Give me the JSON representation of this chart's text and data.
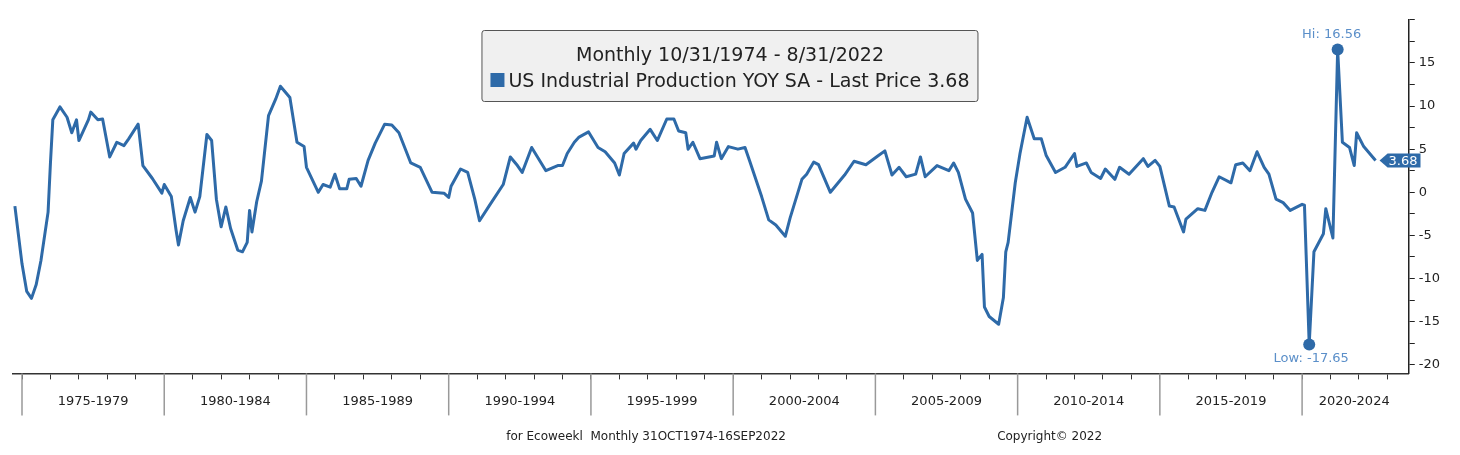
{
  "chart_data": {
    "type": "line",
    "title": "Monthly 10/31/1974 - 8/31/2022",
    "legend": "top",
    "line_style": "solid",
    "marker": "none",
    "x": [
      "1974-10",
      "1975-01",
      "1975-03",
      "1975-05",
      "1975-07",
      "1975-09",
      "1975-12",
      "1976-01",
      "1976-02",
      "1976-05",
      "1976-08",
      "1976-10",
      "1976-12",
      "1977-01",
      "1977-05",
      "1977-06",
      "1977-09",
      "1977-11",
      "1978-02",
      "1978-05",
      "1978-08",
      "1978-10",
      "1979-02",
      "1979-04",
      "1979-08",
      "1979-12",
      "1980-01",
      "1980-04",
      "1980-06",
      "1980-07",
      "1980-09",
      "1980-12",
      "1981-02",
      "1981-04",
      "1981-07",
      "1981-09",
      "1981-11",
      "1982-01",
      "1982-03",
      "1982-05",
      "1982-08",
      "1982-10",
      "1982-12",
      "1983-01",
      "1983-02",
      "1983-04",
      "1983-06",
      "1983-09",
      "1983-12",
      "1984-02",
      "1984-06",
      "1984-09",
      "1984-12",
      "1985-01",
      "1985-06",
      "1985-08",
      "1985-11",
      "1986-01",
      "1986-03",
      "1986-06",
      "1986-07",
      "1986-10",
      "1986-12",
      "1987-03",
      "1987-06",
      "1987-10",
      "1988-01",
      "1988-04",
      "1988-09",
      "1989-01",
      "1989-06",
      "1989-11",
      "1990-01",
      "1990-02",
      "1990-06",
      "1990-09",
      "1990-12",
      "1991-02",
      "1991-06",
      "1991-12",
      "1992-03",
      "1992-06",
      "1992-08",
      "1992-12",
      "1993-06",
      "1993-11",
      "1994-01",
      "1994-03",
      "1994-06",
      "1994-08",
      "1994-12",
      "1995-04",
      "1995-07",
      "1995-11",
      "1996-01",
      "1996-03",
      "1996-07",
      "1996-08",
      "1996-10",
      "1997-02",
      "1997-05",
      "1997-09",
      "1997-12",
      "1998-02",
      "1998-05",
      "1998-06",
      "1998-08",
      "1998-11",
      "1999-05",
      "1999-06",
      "1999-08",
      "1999-11",
      "2000-03",
      "2000-06",
      "2000-08",
      "2001-01",
      "2001-04",
      "2001-07",
      "2001-11",
      "2002-01",
      "2002-06",
      "2002-08",
      "2002-11",
      "2003-01",
      "2003-06",
      "2003-12",
      "2004-04",
      "2004-09",
      "2005-02",
      "2005-05",
      "2005-08",
      "2005-11",
      "2006-02",
      "2006-06",
      "2006-08",
      "2006-10",
      "2007-03",
      "2007-08",
      "2007-10",
      "2007-12",
      "2008-03",
      "2008-06",
      "2008-08",
      "2008-10",
      "2008-11",
      "2009-01",
      "2009-05",
      "2009-07",
      "2009-08",
      "2009-09",
      "2009-12",
      "2010-02",
      "2010-05",
      "2010-08",
      "2010-11",
      "2011-01",
      "2011-05",
      "2011-09",
      "2012-01",
      "2012-02",
      "2012-06",
      "2012-08",
      "2012-12",
      "2013-02",
      "2013-06",
      "2013-08",
      "2013-12",
      "2014-06",
      "2014-08",
      "2014-11",
      "2015-01",
      "2015-05",
      "2015-07",
      "2015-11",
      "2015-12",
      "2016-05",
      "2016-08",
      "2016-11",
      "2017-02",
      "2017-07",
      "2017-09",
      "2017-12",
      "2018-03",
      "2018-06",
      "2018-09",
      "2018-11",
      "2019-02",
      "2019-05",
      "2019-08",
      "2020-01",
      "2020-02",
      "2020-04",
      "2020-06",
      "2020-10",
      "2020-11",
      "2021-02",
      "2021-04",
      "2021-06",
      "2021-09",
      "2021-11",
      "2021-12",
      "2022-03",
      "2022-08"
    ],
    "series": [
      {
        "name": "US Industrial Production YOY SA - Last Price 3.68",
        "color": "#2e6aa8",
        "values": [
          -1.6,
          -8.3,
          -11.5,
          -12.3,
          -10.7,
          -7.9,
          -2.3,
          3.4,
          8.4,
          9.9,
          8.7,
          6.9,
          8.4,
          6.0,
          8.4,
          9.3,
          8.4,
          8.5,
          4.1,
          5.8,
          5.4,
          6.2,
          7.9,
          3.1,
          1.6,
          -0.1,
          0.9,
          -0.5,
          -4.4,
          -6.1,
          -3.3,
          -0.6,
          -2.3,
          -0.5,
          6.7,
          6.0,
          -0.8,
          -4.0,
          -1.7,
          -4.2,
          -6.7,
          -6.9,
          -5.8,
          -2.1,
          -4.6,
          -1.1,
          1.3,
          8.9,
          10.8,
          12.3,
          11.0,
          5.8,
          5.3,
          2.9,
          0.0,
          0.9,
          0.6,
          2.1,
          0.4,
          0.4,
          1.5,
          1.6,
          0.7,
          3.7,
          5.7,
          7.9,
          7.8,
          6.9,
          3.4,
          2.9,
          0.0,
          -0.1,
          -0.6,
          0.7,
          2.7,
          2.3,
          -0.8,
          -3.3,
          -1.6,
          0.9,
          4.1,
          3.1,
          2.3,
          5.2,
          2.5,
          3.1,
          3.1,
          4.5,
          5.8,
          6.4,
          7.0,
          5.2,
          4.7,
          3.4,
          2.0,
          4.5,
          5.7,
          5.0,
          6.0,
          7.3,
          6.0,
          8.5,
          8.5,
          7.1,
          6.9,
          5.0,
          5.8,
          3.9,
          4.2,
          5.8,
          3.9,
          5.3,
          5.0,
          5.2,
          3.6,
          -0.5,
          -3.2,
          -3.8,
          -5.1,
          -3.0,
          1.5,
          2.1,
          3.5,
          3.2,
          0.0,
          2.0,
          3.6,
          3.2,
          4.2,
          4.8,
          2.0,
          2.9,
          1.8,
          2.1,
          4.1,
          1.8,
          3.1,
          2.5,
          3.4,
          2.3,
          -0.8,
          -2.4,
          -7.9,
          -7.2,
          -13.3,
          -14.4,
          -15.3,
          -12.2,
          -6.9,
          -5.8,
          1.1,
          4.5,
          8.7,
          6.2,
          6.2,
          4.3,
          2.3,
          2.9,
          4.5,
          3.0,
          3.4,
          2.3,
          1.6,
          2.7,
          1.5,
          2.9,
          2.1,
          3.9,
          3.0,
          3.7,
          3.0,
          -1.6,
          -1.7,
          -4.6,
          -3.1,
          -1.9,
          -2.1,
          0.0,
          1.8,
          1.1,
          3.2,
          3.4,
          2.5,
          4.7,
          2.9,
          2.1,
          -0.8,
          -1.2,
          -2.1,
          -1.4,
          -1.5,
          -17.65,
          -6.9,
          -4.8,
          -1.9,
          -5.3,
          16.56,
          5.8,
          5.2,
          3.1,
          6.9,
          5.3,
          3.68
        ]
      }
    ],
    "xlim": [
      "1974-09",
      "2023-10"
    ],
    "xticks": [
      {
        "value": "1975-01",
        "label": null
      },
      {
        "value": "1976-01",
        "label": null
      },
      {
        "value": "1977-01",
        "label": null
      },
      {
        "value": "1978-01",
        "label": null
      },
      {
        "value": "1979-01",
        "label": null
      },
      {
        "value": "1980-01",
        "label": null
      },
      {
        "value": "1981-01",
        "label": null
      },
      {
        "value": "1982-01",
        "label": null
      },
      {
        "value": "1983-01",
        "label": null
      },
      {
        "value": "1984-01",
        "label": null
      },
      {
        "value": "1985-01",
        "label": null
      },
      {
        "value": "1986-01",
        "label": null
      },
      {
        "value": "1987-01",
        "label": null
      },
      {
        "value": "1988-01",
        "label": null
      },
      {
        "value": "1989-01",
        "label": null
      },
      {
        "value": "1990-01",
        "label": null
      },
      {
        "value": "1991-01",
        "label": null
      },
      {
        "value": "1992-01",
        "label": null
      },
      {
        "value": "1993-01",
        "label": null
      },
      {
        "value": "1994-01",
        "label": null
      },
      {
        "value": "1995-01",
        "label": null
      },
      {
        "value": "1996-01",
        "label": null
      },
      {
        "value": "1997-01",
        "label": null
      },
      {
        "value": "1998-01",
        "label": null
      },
      {
        "value": "1999-01",
        "label": null
      },
      {
        "value": "2000-01",
        "label": null
      },
      {
        "value": "2001-01",
        "label": null
      },
      {
        "value": "2002-01",
        "label": null
      },
      {
        "value": "2003-01",
        "label": null
      },
      {
        "value": "2004-01",
        "label": null
      },
      {
        "value": "2005-01",
        "label": null
      },
      {
        "value": "2006-01",
        "label": null
      },
      {
        "value": "2007-01",
        "label": null
      },
      {
        "value": "2008-01",
        "label": null
      },
      {
        "value": "2009-01",
        "label": null
      },
      {
        "value": "2010-01",
        "label": null
      },
      {
        "value": "2011-01",
        "label": null
      },
      {
        "value": "2012-01",
        "label": null
      },
      {
        "value": "2013-01",
        "label": null
      },
      {
        "value": "2014-01",
        "label": null
      },
      {
        "value": "2015-01",
        "label": null
      },
      {
        "value": "2016-01",
        "label": null
      },
      {
        "value": "2017-01",
        "label": null
      },
      {
        "value": "2018-01",
        "label": null
      },
      {
        "value": "2019-01",
        "label": null
      },
      {
        "value": "2020-01",
        "label": null
      },
      {
        "value": "2021-01",
        "label": null
      },
      {
        "value": "2022-01",
        "label": null
      },
      {
        "value": "2023-01",
        "label": null
      },
      {
        "value": "1977-07",
        "label": "1975-1979"
      },
      {
        "value": "1982-07",
        "label": "1980-1984"
      },
      {
        "value": "1987-07",
        "label": "1985-1989"
      },
      {
        "value": "1992-07",
        "label": "1990-1994"
      },
      {
        "value": "1997-07",
        "label": "1995-1999"
      },
      {
        "value": "2002-07",
        "label": "2000-2004"
      },
      {
        "value": "2007-07",
        "label": "2005-2009"
      },
      {
        "value": "2012-07",
        "label": "2010-2014"
      },
      {
        "value": "2017-07",
        "label": "2015-2019"
      },
      {
        "value": "2021-11",
        "label": "2020-2024"
      }
    ],
    "ylim": [
      -21,
      20
    ],
    "yticks": [
      -20,
      {
        "value": -17.5,
        "label": null
      },
      -15,
      {
        "value": -12.5,
        "label": null
      },
      -10,
      {
        "value": -7.5,
        "label": null
      },
      -5,
      {
        "value": -2.5,
        "label": null
      },
      0,
      {
        "value": 2.5,
        "label": null
      },
      5,
      {
        "value": 7.5,
        "label": null
      },
      10,
      {
        "value": 12.5,
        "label": null
      },
      15,
      {
        "value": 17.5,
        "label": null
      },
      {
        "value": 20,
        "label": null
      }
    ],
    "annotations": [
      {
        "text": "Hi: 16.56",
        "x": "2021-04",
        "y": 16.56
      },
      {
        "text": "Low: -17.65",
        "x": "2020-04",
        "y": -17.65
      },
      {
        "text": "3.68",
        "x": "2022-08",
        "y": 3.68
      },
      "for Ecoweekl  Monthly 31OCT1974-16SEP2022",
      "Copyright© 2022"
    ]
  }
}
